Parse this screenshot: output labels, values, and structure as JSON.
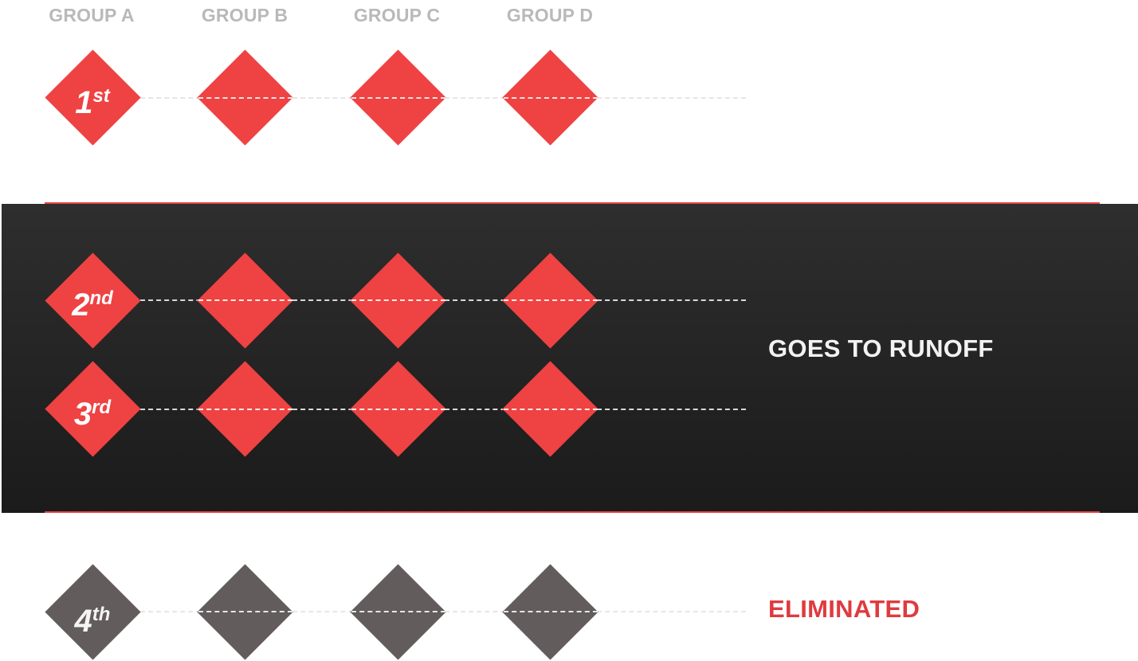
{
  "groups": [
    "GROUP A",
    "GROUP B",
    "GROUP C",
    "GROUP D"
  ],
  "ranks": [
    {
      "number": "1",
      "suffix": "st"
    },
    {
      "number": "2",
      "suffix": "nd"
    },
    {
      "number": "3",
      "suffix": "rd"
    },
    {
      "number": "4",
      "suffix": "th"
    }
  ],
  "labels": {
    "runoff": "GOES TO RUNOFF",
    "eliminated": "ELIMINATED"
  },
  "colors": {
    "advance_red": "#ef4242",
    "eliminated_grey": "#625c5c",
    "band_dark": "#252525",
    "eliminated_text": "#e03a3e"
  }
}
